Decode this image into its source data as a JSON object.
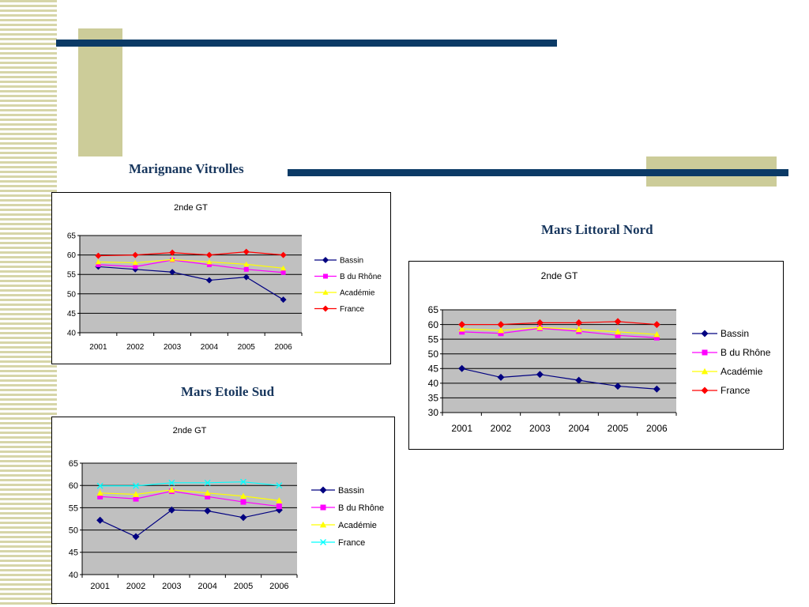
{
  "colors": {
    "navy": "#0b3a66",
    "khaki": "#cccc99",
    "title_text": "#17365d",
    "plot_bg": "#c0c0c0"
  },
  "sections": {
    "marignane": "Marignane Vitrolles",
    "littoral": "Mars Littoral Nord",
    "etoile": "Mars Etoile Sud"
  },
  "chart_data": [
    {
      "type": "line",
      "title": "2nde GT",
      "section": "Marignane Vitrolles",
      "x": [
        "2001",
        "2002",
        "2003",
        "2004",
        "2005",
        "2006"
      ],
      "ylim": [
        40,
        65
      ],
      "yticks": [
        40,
        45,
        50,
        55,
        60,
        65
      ],
      "grid": true,
      "legend": "right",
      "series": [
        {
          "name": "Bassin",
          "color": "#000080",
          "marker": "diamond",
          "values": [
            57,
            56.3,
            55.6,
            53.5,
            54.3,
            48.5
          ]
        },
        {
          "name": "B du Rhône",
          "color": "#ff00ff",
          "marker": "square",
          "values": [
            57.5,
            57,
            58.7,
            57.5,
            56.3,
            55.5
          ]
        },
        {
          "name": "Académie",
          "color": "#ffff00",
          "marker": "triangle",
          "values": [
            58.2,
            58,
            58.8,
            58.2,
            57.6,
            56.6
          ]
        },
        {
          "name": "France",
          "color": "#ff0000",
          "marker": "diamond",
          "values": [
            59.8,
            60,
            60.6,
            60,
            60.8,
            60
          ]
        }
      ]
    },
    {
      "type": "line",
      "title": "2nde GT",
      "section": "Mars Littoral Nord",
      "x": [
        "2001",
        "2002",
        "2003",
        "2004",
        "2005",
        "2006"
      ],
      "ylim": [
        30,
        65
      ],
      "yticks": [
        30,
        35,
        40,
        45,
        50,
        55,
        60,
        65
      ],
      "grid": true,
      "legend": "right",
      "series": [
        {
          "name": "Bassin",
          "color": "#000080",
          "marker": "diamond",
          "values": [
            45,
            42,
            43,
            41,
            39,
            38
          ]
        },
        {
          "name": "B du Rhône",
          "color": "#ff00ff",
          "marker": "square",
          "values": [
            57.5,
            57,
            58.7,
            57.7,
            56.3,
            55.5
          ]
        },
        {
          "name": "Académie",
          "color": "#ffff00",
          "marker": "triangle",
          "values": [
            58.5,
            58,
            59,
            58.3,
            57.5,
            56.6
          ]
        },
        {
          "name": "France",
          "color": "#ff0000",
          "marker": "diamond",
          "values": [
            60,
            60,
            60.6,
            60.6,
            61,
            60
          ]
        }
      ]
    },
    {
      "type": "line",
      "title": "2nde GT",
      "section": "Mars Etoile Sud",
      "x": [
        "2001",
        "2002",
        "2003",
        "2004",
        "2005",
        "2006"
      ],
      "ylim": [
        40,
        65
      ],
      "yticks": [
        40,
        45,
        50,
        55,
        60,
        65
      ],
      "grid": true,
      "legend": "right",
      "series": [
        {
          "name": "Bassin",
          "color": "#000080",
          "marker": "diamond",
          "values": [
            52.2,
            48.5,
            54.5,
            54.3,
            52.8,
            54.5
          ]
        },
        {
          "name": "B du Rhône",
          "color": "#ff00ff",
          "marker": "square",
          "values": [
            57.5,
            57,
            58.7,
            57.5,
            56.3,
            55.3
          ]
        },
        {
          "name": "Académie",
          "color": "#ffff00",
          "marker": "triangle",
          "values": [
            58.3,
            58,
            59,
            58.3,
            57.6,
            56.6
          ]
        },
        {
          "name": "France",
          "color": "#00ffff",
          "marker": "x",
          "values": [
            59.9,
            59.9,
            60.6,
            60.6,
            60.8,
            60
          ]
        }
      ]
    }
  ]
}
